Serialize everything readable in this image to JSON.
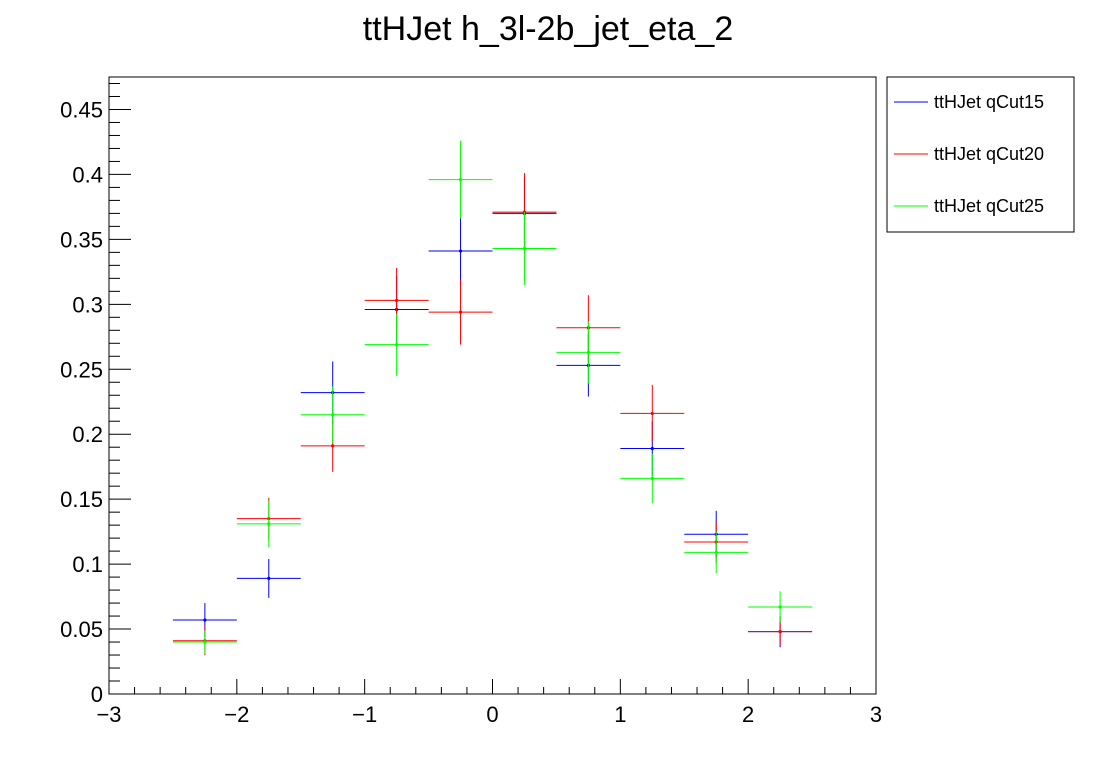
{
  "chart_data": {
    "type": "scatter",
    "title": "ttHJet h_3l-2b_jet_eta_2",
    "xlabel": "",
    "ylabel": "",
    "xlim": [
      -3,
      3
    ],
    "ylim": [
      0,
      0.475
    ],
    "x_ticks": [
      -3,
      -2,
      -1,
      0,
      1,
      2,
      3
    ],
    "x_tick_labels": [
      "−3",
      "−2",
      "−1",
      "0",
      "1",
      "2",
      "3"
    ],
    "y_ticks": [
      0,
      0.05,
      0.1,
      0.15,
      0.2,
      0.25,
      0.3,
      0.35,
      0.4,
      0.45
    ],
    "y_tick_labels": [
      "0",
      "0.05",
      "0.1",
      "0.15",
      "0.2",
      "0.25",
      "0.3",
      "0.35",
      "0.4",
      "0.45"
    ],
    "grid": false,
    "legend_position": "top-right-outside",
    "bin_edges": [
      -2.5,
      -2.0,
      -1.5,
      -1.0,
      -0.5,
      0.0,
      0.5,
      1.0,
      1.5,
      2.0,
      2.5
    ],
    "x": [
      -2.25,
      -1.75,
      -1.25,
      -0.75,
      -0.25,
      0.25,
      0.75,
      1.25,
      1.75,
      2.25
    ],
    "series": [
      {
        "name": "ttHJet qCut15",
        "color": "#0000ff",
        "values": [
          0.057,
          0.089,
          0.232,
          0.296,
          0.341,
          0.37,
          0.253,
          0.189,
          0.123,
          0.048
        ],
        "errors": [
          0.013,
          0.015,
          0.024,
          0.026,
          0.026,
          0.027,
          0.024,
          0.021,
          0.018,
          0.012
        ]
      },
      {
        "name": "ttHJet qCut20",
        "color": "#ff0000",
        "values": [
          0.041,
          0.135,
          0.191,
          0.303,
          0.294,
          0.371,
          0.282,
          0.216,
          0.117,
          0.048
        ],
        "errors": [
          0.011,
          0.016,
          0.02,
          0.025,
          0.025,
          0.03,
          0.025,
          0.022,
          0.016,
          0.011
        ]
      },
      {
        "name": "ttHJet qCut25",
        "color": "#00ff00",
        "values": [
          0.04,
          0.131,
          0.215,
          0.269,
          0.396,
          0.343,
          0.263,
          0.166,
          0.109,
          0.067
        ],
        "errors": [
          0.009,
          0.018,
          0.022,
          0.024,
          0.03,
          0.028,
          0.024,
          0.019,
          0.016,
          0.012
        ]
      }
    ]
  }
}
